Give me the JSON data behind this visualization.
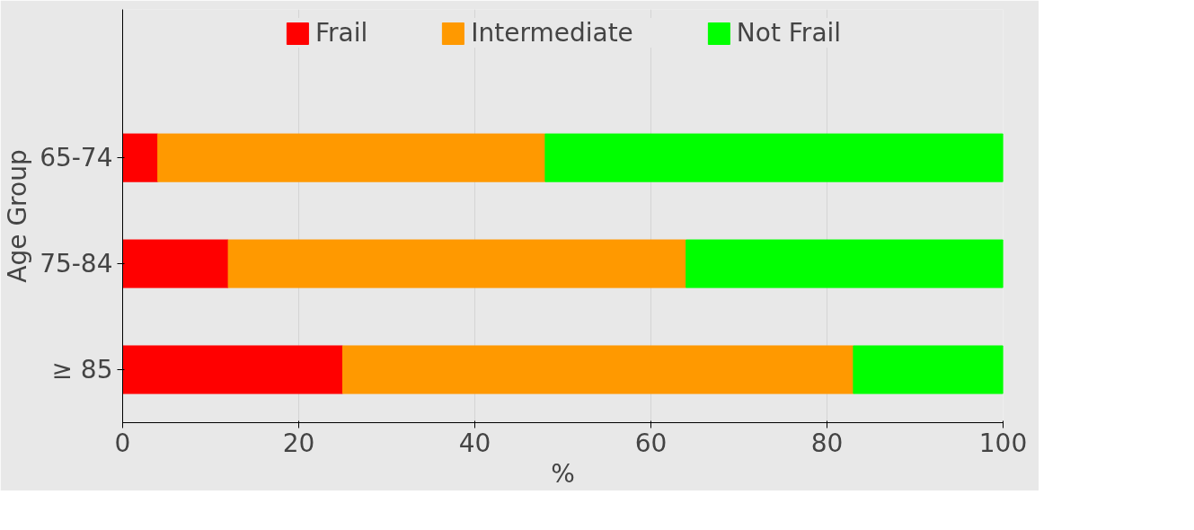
{
  "chart_data": {
    "type": "bar",
    "orientation": "horizontal",
    "stacked": true,
    "categories": [
      "65-74",
      "75-84",
      "≥ 85"
    ],
    "series": [
      {
        "name": "Frail",
        "color": "#ff0000",
        "values": [
          4,
          12,
          25
        ]
      },
      {
        "name": "Intermediate",
        "color": "#ff9900",
        "values": [
          44,
          52,
          58
        ]
      },
      {
        "name": "Not Frail",
        "color": "#00ff00",
        "values": [
          52,
          36,
          17
        ]
      }
    ],
    "xlim": [
      0,
      100
    ],
    "xticks": [
      0,
      20,
      40,
      60,
      80,
      100
    ],
    "xlabel": "%",
    "ylabel": "Age Group",
    "grid": "x",
    "legend": "top"
  }
}
